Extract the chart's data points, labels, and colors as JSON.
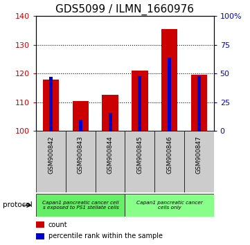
{
  "title": "GDS5099 / ILMN_1660976",
  "categories": [
    "GSM900842",
    "GSM900843",
    "GSM900844",
    "GSM900845",
    "GSM900846",
    "GSM900847"
  ],
  "count_values": [
    118.0,
    110.5,
    112.5,
    121.0,
    135.5,
    119.5
  ],
  "percentile_values": [
    47,
    10,
    16,
    48,
    64,
    48
  ],
  "ylim_left": [
    100,
    140
  ],
  "ylim_right": [
    0,
    100
  ],
  "yticks_left": [
    100,
    110,
    120,
    130,
    140
  ],
  "yticks_right": [
    0,
    25,
    50,
    75,
    100
  ],
  "ytick_labels_right": [
    "0",
    "25",
    "50",
    "75",
    "100%"
  ],
  "left_color": "#cc0000",
  "right_color": "#0000cc",
  "protocol_groups": [
    {
      "label": "Capan1 pancreatic cancer cell\ns exposed to PS1 stellate cells",
      "start": 0,
      "end": 3,
      "color": "#66ee66"
    },
    {
      "label": "Capan1 pancreatic cancer\ncells only",
      "start": 3,
      "end": 6,
      "color": "#88ff88"
    }
  ],
  "legend_items": [
    {
      "color": "#cc0000",
      "label": "count"
    },
    {
      "color": "#0000cc",
      "label": "percentile rank within the sample"
    }
  ],
  "protocol_label": "protocol",
  "background_color": "#ffffff",
  "plot_bg_color": "#ffffff",
  "tick_label_fontsize": 8,
  "title_fontsize": 11,
  "xtick_bg_color": "#cccccc"
}
